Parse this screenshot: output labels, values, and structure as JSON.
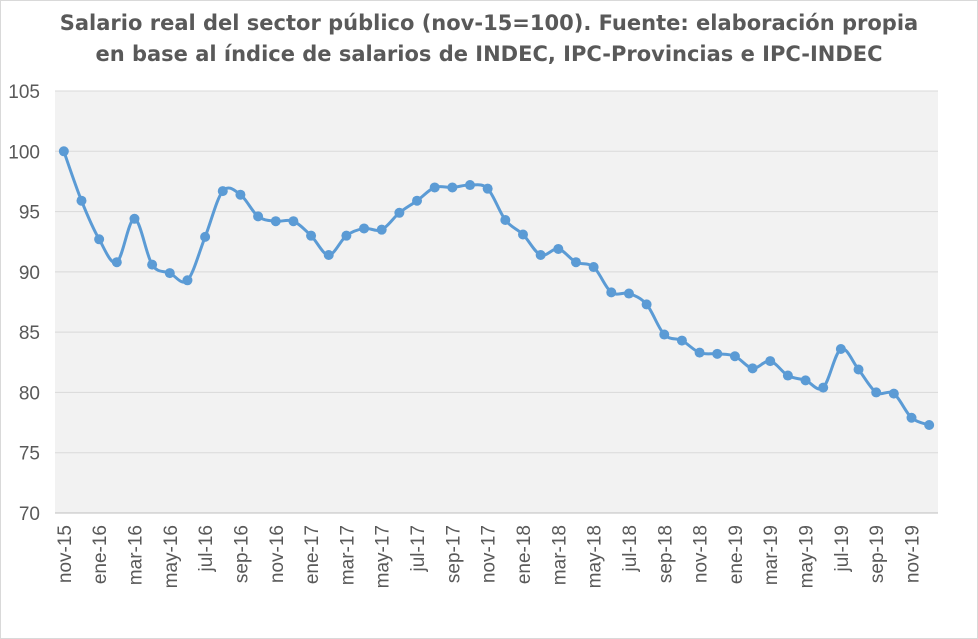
{
  "chart_data": {
    "type": "line",
    "title": "Salario real del sector público (nov-15=100). Fuente: elaboración propia",
    "subtitle": "en base al índice de salarios de INDEC, IPC-Provincias e IPC-INDEC",
    "xlabel": "",
    "ylabel": "",
    "ylim": [
      70,
      105
    ],
    "yticks": [
      70,
      75,
      80,
      85,
      90,
      95,
      100,
      105
    ],
    "grid": true,
    "legend": "none",
    "x": [
      "nov-15",
      "dic-15",
      "ene-16",
      "feb-16",
      "mar-16",
      "abr-16",
      "may-16",
      "jun-16",
      "jul-16",
      "ago-16",
      "sep-16",
      "oct-16",
      "nov-16",
      "dic-16",
      "ene-17",
      "feb-17",
      "mar-17",
      "abr-17",
      "may-17",
      "jun-17",
      "jul-17",
      "ago-17",
      "sep-17",
      "oct-17",
      "nov-17",
      "dic-17",
      "ene-18",
      "feb-18",
      "mar-18",
      "abr-18",
      "may-18",
      "jun-18",
      "jul-18",
      "ago-18",
      "sep-18",
      "oct-18",
      "nov-18",
      "dic-18",
      "ene-19",
      "feb-19",
      "mar-19",
      "abr-19",
      "may-19",
      "jun-19",
      "jul-19",
      "ago-19",
      "sep-19",
      "oct-19",
      "nov-19",
      "dic-19"
    ],
    "xticks_shown": [
      "nov-15",
      "ene-16",
      "mar-16",
      "may-16",
      "jul-16",
      "sep-16",
      "nov-16",
      "ene-17",
      "mar-17",
      "may-17",
      "jul-17",
      "sep-17",
      "nov-17",
      "ene-18",
      "mar-18",
      "may-18",
      "jul-18",
      "sep-18",
      "nov-18",
      "ene-19",
      "mar-19",
      "may-19",
      "jul-19",
      "sep-19",
      "nov-19"
    ],
    "series": [
      {
        "color": "#5b9bd5",
        "values": [
          100.0,
          95.9,
          92.7,
          90.8,
          94.4,
          90.6,
          89.9,
          89.3,
          92.9,
          96.7,
          96.4,
          94.6,
          94.2,
          94.2,
          93.0,
          91.4,
          93.0,
          93.6,
          93.5,
          94.9,
          95.9,
          97.0,
          97.0,
          97.2,
          96.9,
          94.3,
          93.1,
          91.4,
          91.9,
          90.8,
          90.4,
          88.3,
          88.2,
          87.3,
          84.8,
          84.3,
          83.3,
          83.2,
          83.0,
          82.0,
          82.6,
          81.4,
          81.0,
          80.4,
          83.6,
          81.9,
          80.0,
          79.9,
          77.9,
          77.3
        ]
      }
    ]
  }
}
